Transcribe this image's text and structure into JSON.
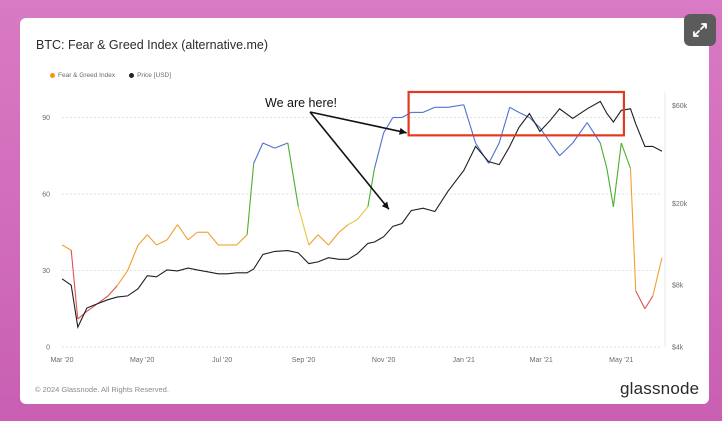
{
  "card": {
    "title": "BTC: Fear & Greed Index (alternative.me)",
    "footer": "© 2024 Glassnode. All Rights Reserved.",
    "brand": "glassnode",
    "expand_icon": "expand-arrows-icon"
  },
  "chart_data": {
    "type": "line",
    "title": "BTC: Fear & Greed Index (alternative.me)",
    "legend": [
      {
        "name": "Fear & Greed Index",
        "color": "#f7931a"
      },
      {
        "name": "Price [USD]",
        "color": "#222222"
      }
    ],
    "legend_position": "top-left",
    "grid": true,
    "x_ticks": [
      "Mar '20",
      "May '20",
      "Jul '20",
      "Sep '20",
      "Nov '20",
      "Jan '21",
      "Mar '21",
      "May '21"
    ],
    "x_range": [
      "2020-03-01",
      "2021-06-01"
    ],
    "y_left": {
      "ticks": [
        0,
        30,
        60,
        90
      ],
      "range": [
        0,
        100
      ]
    },
    "y_right": {
      "ticks": [
        "$4k",
        "$8k",
        "$20k",
        "$60k"
      ],
      "scale": "log",
      "values": [
        4000,
        8000,
        20000,
        60000
      ],
      "range": [
        4000,
        70000
      ]
    },
    "color_bands": {
      "extreme_fear": "#d9534f",
      "fear": "#f0a030",
      "neutral": "#e6c640",
      "greed": "#4caf2e",
      "extreme_greed": "#4f6fd0"
    },
    "series": [
      {
        "name": "Fear & Greed Index",
        "type": "line",
        "x": [
          "2020-03-01",
          "2020-03-08",
          "2020-03-13",
          "2020-03-20",
          "2020-03-28",
          "2020-04-05",
          "2020-04-12",
          "2020-04-20",
          "2020-04-28",
          "2020-05-05",
          "2020-05-12",
          "2020-05-20",
          "2020-05-28",
          "2020-06-05",
          "2020-06-12",
          "2020-06-20",
          "2020-06-28",
          "2020-07-05",
          "2020-07-12",
          "2020-07-20",
          "2020-07-25",
          "2020-08-01",
          "2020-08-10",
          "2020-08-20",
          "2020-08-28",
          "2020-09-05",
          "2020-09-12",
          "2020-09-20",
          "2020-09-28",
          "2020-10-05",
          "2020-10-12",
          "2020-10-20",
          "2020-10-25",
          "2020-11-01",
          "2020-11-08",
          "2020-11-15",
          "2020-11-22",
          "2020-12-01",
          "2020-12-10",
          "2020-12-20",
          "2021-01-01",
          "2021-01-10",
          "2021-01-20",
          "2021-01-28",
          "2021-02-05",
          "2021-02-12",
          "2021-02-20",
          "2021-02-28",
          "2021-03-08",
          "2021-03-15",
          "2021-03-25",
          "2021-04-05",
          "2021-04-15",
          "2021-04-20",
          "2021-04-25",
          "2021-05-01",
          "2021-05-08",
          "2021-05-12",
          "2021-05-19",
          "2021-05-25",
          "2021-06-01"
        ],
        "values": [
          40,
          38,
          11,
          14,
          17,
          20,
          24,
          30,
          40,
          44,
          40,
          42,
          48,
          42,
          45,
          45,
          40,
          40,
          40,
          44,
          72,
          80,
          78,
          80,
          55,
          40,
          44,
          40,
          45,
          48,
          50,
          55,
          70,
          84,
          90,
          90,
          92,
          92,
          94,
          94,
          95,
          80,
          72,
          80,
          94,
          92,
          90,
          86,
          80,
          75,
          80,
          88,
          80,
          70,
          55,
          80,
          70,
          22,
          15,
          20,
          35
        ]
      },
      {
        "name": "Price [USD]",
        "type": "line",
        "x": [
          "2020-03-01",
          "2020-03-08",
          "2020-03-13",
          "2020-03-20",
          "2020-03-28",
          "2020-04-05",
          "2020-04-12",
          "2020-04-20",
          "2020-04-28",
          "2020-05-05",
          "2020-05-12",
          "2020-05-20",
          "2020-05-28",
          "2020-06-05",
          "2020-06-12",
          "2020-06-20",
          "2020-06-28",
          "2020-07-05",
          "2020-07-12",
          "2020-07-20",
          "2020-07-25",
          "2020-08-01",
          "2020-08-10",
          "2020-08-20",
          "2020-08-28",
          "2020-09-05",
          "2020-09-12",
          "2020-09-20",
          "2020-09-28",
          "2020-10-05",
          "2020-10-12",
          "2020-10-20",
          "2020-10-25",
          "2020-11-01",
          "2020-11-08",
          "2020-11-15",
          "2020-11-22",
          "2020-12-01",
          "2020-12-10",
          "2020-12-20",
          "2021-01-01",
          "2021-01-10",
          "2021-01-20",
          "2021-01-28",
          "2021-02-05",
          "2021-02-12",
          "2021-02-20",
          "2021-02-28",
          "2021-03-08",
          "2021-03-15",
          "2021-03-25",
          "2021-04-05",
          "2021-04-15",
          "2021-04-20",
          "2021-04-25",
          "2021-05-01",
          "2021-05-08",
          "2021-05-12",
          "2021-05-19",
          "2021-05-25",
          "2021-06-01"
        ],
        "values": [
          8600,
          8000,
          5000,
          6200,
          6500,
          6800,
          7000,
          7100,
          7700,
          8900,
          8800,
          9500,
          9400,
          9700,
          9500,
          9300,
          9100,
          9100,
          9200,
          9200,
          9600,
          11300,
          11700,
          11800,
          11500,
          10200,
          10400,
          10900,
          10700,
          10700,
          11400,
          12800,
          13000,
          13800,
          15500,
          16000,
          18500,
          19000,
          18300,
          23000,
          29000,
          38000,
          32000,
          31000,
          38000,
          47000,
          55000,
          45000,
          51000,
          58000,
          52000,
          58000,
          63000,
          55000,
          50000,
          57000,
          58000,
          49000,
          38000,
          38000,
          36000
        ]
      }
    ],
    "annotations": [
      {
        "type": "text",
        "text": "We are here!"
      },
      {
        "type": "box",
        "color": "#e23a20",
        "x_from": "2020-11-20",
        "x_to": "2021-05-03",
        "y_from": 83,
        "y_to": 100
      }
    ]
  }
}
